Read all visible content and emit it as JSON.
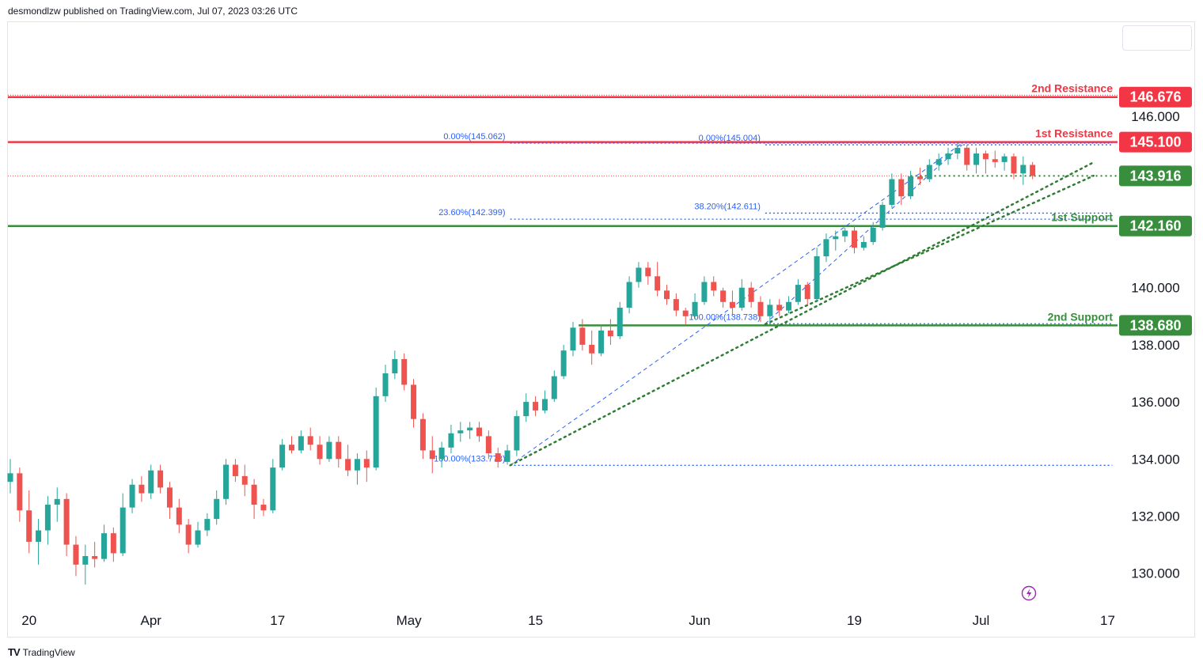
{
  "header": {
    "text": "desmondlzw published on TradingView.com, Jul 07, 2023 03:26 UTC"
  },
  "footer": {
    "logo": "TV",
    "brand": "TradingView"
  },
  "colors": {
    "resistance": "#f23645",
    "support": "#388e3c",
    "fib": "#2962ff",
    "trend": "#2e7d32",
    "up": "#26a69a",
    "down": "#ef5350"
  },
  "chart_data": {
    "type": "candlestick",
    "title": "",
    "ylim": [
      128.8,
      149.3
    ],
    "x_range": [
      0,
      118
    ],
    "y_ticks": [
      {
        "value": 146.0,
        "label": "146.000"
      },
      {
        "value": 140.0,
        "label": "140.000"
      },
      {
        "value": 138.0,
        "label": "138.000"
      },
      {
        "value": 136.0,
        "label": "136.000"
      },
      {
        "value": 134.0,
        "label": "134.000"
      },
      {
        "value": 132.0,
        "label": "132.000"
      },
      {
        "value": 130.0,
        "label": "130.000"
      }
    ],
    "x_ticks": [
      {
        "x": 2,
        "label": "20"
      },
      {
        "x": 15,
        "label": "Apr"
      },
      {
        "x": 28.5,
        "label": "17"
      },
      {
        "x": 42.5,
        "label": "May"
      },
      {
        "x": 56,
        "label": "15"
      },
      {
        "x": 73.5,
        "label": "Jun"
      },
      {
        "x": 90,
        "label": "19"
      },
      {
        "x": 103.5,
        "label": "Jul"
      },
      {
        "x": 117,
        "label": "17"
      }
    ],
    "levels": [
      {
        "name": "2nd Resistance",
        "value": 146.676,
        "label": "146.676",
        "kind": "resistance"
      },
      {
        "name": "1st Resistance",
        "value": 145.1,
        "label": "145.100",
        "kind": "resistance"
      },
      {
        "name": "1st Support",
        "value": 142.16,
        "label": "142.160",
        "kind": "support"
      },
      {
        "name": "2nd Support",
        "value": 138.68,
        "label": "138.680",
        "kind": "support"
      }
    ],
    "current_price": {
      "value": 143.916,
      "label": "143.916"
    },
    "fib_levels": [
      {
        "label": "0.00%(145.062)",
        "value": 145.062,
        "x0": 53.3,
        "x1": 117.5
      },
      {
        "label": "23.60%(142.399)",
        "value": 142.399,
        "x0": 53.3,
        "x1": 117.5
      },
      {
        "label": "100.00%(133.778)",
        "value": 133.778,
        "x0": 53.3,
        "x1": 117.5
      },
      {
        "label": "0.00%(145.004)",
        "value": 145.004,
        "x0": 80.5,
        "x1": 117.5
      },
      {
        "label": "38.20%(142.611)",
        "value": 142.611,
        "x0": 80.5,
        "x1": 117.5
      },
      {
        "label": "100.00%(138.738)",
        "value": 138.738,
        "x0": 80.5,
        "x1": 117.5
      }
    ],
    "trendlines": [
      {
        "x0": 53.3,
        "y0": 133.778,
        "x1": 115.5,
        "y1": 144.39
      },
      {
        "x0": 80.5,
        "y0": 138.72,
        "x1": 115.5,
        "y1": 143.92
      }
    ],
    "diagonals": [
      {
        "x0": 53.3,
        "y0": 133.778,
        "x1": 101.5,
        "y1": 145.062
      },
      {
        "x0": 80.5,
        "y0": 138.738,
        "x1": 101.5,
        "y1": 145.004
      }
    ],
    "candles": [
      {
        "x": 0,
        "o": 133.2,
        "h": 134.0,
        "l": 132.8,
        "c": 133.5
      },
      {
        "x": 1,
        "o": 133.5,
        "h": 133.7,
        "l": 131.8,
        "c": 132.2
      },
      {
        "x": 2,
        "o": 132.2,
        "h": 132.9,
        "l": 130.7,
        "c": 131.1
      },
      {
        "x": 3,
        "o": 131.1,
        "h": 131.9,
        "l": 130.3,
        "c": 131.5
      },
      {
        "x": 4,
        "o": 131.5,
        "h": 132.7,
        "l": 131.0,
        "c": 132.4
      },
      {
        "x": 5,
        "o": 132.4,
        "h": 133.0,
        "l": 131.8,
        "c": 132.6
      },
      {
        "x": 6,
        "o": 132.6,
        "h": 132.8,
        "l": 130.6,
        "c": 131.0
      },
      {
        "x": 7,
        "o": 131.0,
        "h": 131.3,
        "l": 129.9,
        "c": 130.3
      },
      {
        "x": 8,
        "o": 130.3,
        "h": 131.0,
        "l": 129.6,
        "c": 130.6
      },
      {
        "x": 9,
        "o": 130.6,
        "h": 131.1,
        "l": 130.2,
        "c": 130.5
      },
      {
        "x": 10,
        "o": 130.5,
        "h": 131.7,
        "l": 130.4,
        "c": 131.4
      },
      {
        "x": 11,
        "o": 131.4,
        "h": 131.6,
        "l": 130.4,
        "c": 130.7
      },
      {
        "x": 12,
        "o": 130.7,
        "h": 132.8,
        "l": 130.6,
        "c": 132.3
      },
      {
        "x": 13,
        "o": 132.3,
        "h": 133.3,
        "l": 132.1,
        "c": 133.1
      },
      {
        "x": 14,
        "o": 133.1,
        "h": 133.4,
        "l": 132.5,
        "c": 132.8
      },
      {
        "x": 15,
        "o": 132.8,
        "h": 133.8,
        "l": 132.6,
        "c": 133.6
      },
      {
        "x": 16,
        "o": 133.6,
        "h": 133.8,
        "l": 132.8,
        "c": 133.0
      },
      {
        "x": 17,
        "o": 133.0,
        "h": 133.2,
        "l": 131.9,
        "c": 132.3
      },
      {
        "x": 18,
        "o": 132.3,
        "h": 132.6,
        "l": 131.4,
        "c": 131.7
      },
      {
        "x": 19,
        "o": 131.7,
        "h": 131.9,
        "l": 130.7,
        "c": 131.0
      },
      {
        "x": 20,
        "o": 131.0,
        "h": 131.8,
        "l": 130.9,
        "c": 131.5
      },
      {
        "x": 21,
        "o": 131.5,
        "h": 132.1,
        "l": 131.3,
        "c": 131.9
      },
      {
        "x": 22,
        "o": 131.9,
        "h": 132.9,
        "l": 131.7,
        "c": 132.6
      },
      {
        "x": 23,
        "o": 132.6,
        "h": 134.0,
        "l": 132.4,
        "c": 133.8
      },
      {
        "x": 24,
        "o": 133.8,
        "h": 134.0,
        "l": 133.2,
        "c": 133.4
      },
      {
        "x": 25,
        "o": 133.4,
        "h": 133.8,
        "l": 132.7,
        "c": 133.1
      },
      {
        "x": 26,
        "o": 133.1,
        "h": 133.3,
        "l": 131.9,
        "c": 132.4
      },
      {
        "x": 27,
        "o": 132.4,
        "h": 132.6,
        "l": 132.0,
        "c": 132.2
      },
      {
        "x": 28,
        "o": 132.2,
        "h": 134.0,
        "l": 132.1,
        "c": 133.7
      },
      {
        "x": 29,
        "o": 133.7,
        "h": 134.7,
        "l": 133.6,
        "c": 134.5
      },
      {
        "x": 30,
        "o": 134.5,
        "h": 134.8,
        "l": 134.2,
        "c": 134.3
      },
      {
        "x": 31,
        "o": 134.3,
        "h": 135.0,
        "l": 134.2,
        "c": 134.8
      },
      {
        "x": 32,
        "o": 134.8,
        "h": 135.1,
        "l": 134.3,
        "c": 134.5
      },
      {
        "x": 33,
        "o": 134.5,
        "h": 134.8,
        "l": 133.8,
        "c": 134.0
      },
      {
        "x": 34,
        "o": 134.0,
        "h": 134.8,
        "l": 133.9,
        "c": 134.6
      },
      {
        "x": 35,
        "o": 134.6,
        "h": 134.8,
        "l": 133.7,
        "c": 134.0
      },
      {
        "x": 36,
        "o": 134.0,
        "h": 134.5,
        "l": 133.4,
        "c": 133.6
      },
      {
        "x": 37,
        "o": 133.6,
        "h": 134.2,
        "l": 133.1,
        "c": 134.0
      },
      {
        "x": 38,
        "o": 134.0,
        "h": 134.3,
        "l": 133.2,
        "c": 133.7
      },
      {
        "x": 39,
        "o": 133.7,
        "h": 136.5,
        "l": 133.6,
        "c": 136.2
      },
      {
        "x": 40,
        "o": 136.2,
        "h": 137.3,
        "l": 136.0,
        "c": 137.0
      },
      {
        "x": 41,
        "o": 137.0,
        "h": 137.8,
        "l": 136.8,
        "c": 137.5
      },
      {
        "x": 42,
        "o": 137.5,
        "h": 137.7,
        "l": 136.4,
        "c": 136.6
      },
      {
        "x": 43,
        "o": 136.6,
        "h": 136.8,
        "l": 135.1,
        "c": 135.4
      },
      {
        "x": 44,
        "o": 135.4,
        "h": 135.6,
        "l": 134.0,
        "c": 134.3
      },
      {
        "x": 45,
        "o": 134.3,
        "h": 134.8,
        "l": 133.5,
        "c": 134.0
      },
      {
        "x": 46,
        "o": 134.0,
        "h": 134.6,
        "l": 133.7,
        "c": 134.4
      },
      {
        "x": 47,
        "o": 134.4,
        "h": 135.2,
        "l": 134.2,
        "c": 134.9
      },
      {
        "x": 48,
        "o": 134.9,
        "h": 135.3,
        "l": 134.6,
        "c": 135.0
      },
      {
        "x": 49,
        "o": 135.0,
        "h": 135.3,
        "l": 134.7,
        "c": 135.1
      },
      {
        "x": 50,
        "o": 135.1,
        "h": 135.3,
        "l": 134.6,
        "c": 134.8
      },
      {
        "x": 51,
        "o": 134.8,
        "h": 135.0,
        "l": 134.0,
        "c": 134.2
      },
      {
        "x": 52,
        "o": 134.2,
        "h": 134.4,
        "l": 133.7,
        "c": 133.9
      },
      {
        "x": 53,
        "o": 133.9,
        "h": 134.5,
        "l": 133.8,
        "c": 134.3
      },
      {
        "x": 54,
        "o": 134.3,
        "h": 135.7,
        "l": 134.1,
        "c": 135.5
      },
      {
        "x": 55,
        "o": 135.5,
        "h": 136.3,
        "l": 135.3,
        "c": 136.0
      },
      {
        "x": 56,
        "o": 136.0,
        "h": 136.2,
        "l": 135.5,
        "c": 135.7
      },
      {
        "x": 57,
        "o": 135.7,
        "h": 136.4,
        "l": 135.6,
        "c": 136.1
      },
      {
        "x": 58,
        "o": 136.1,
        "h": 137.1,
        "l": 136.0,
        "c": 136.9
      },
      {
        "x": 59,
        "o": 136.9,
        "h": 138.0,
        "l": 136.8,
        "c": 137.8
      },
      {
        "x": 60,
        "o": 137.8,
        "h": 138.8,
        "l": 137.6,
        "c": 138.6
      },
      {
        "x": 61,
        "o": 138.6,
        "h": 138.9,
        "l": 137.8,
        "c": 138.0
      },
      {
        "x": 62,
        "o": 138.0,
        "h": 138.5,
        "l": 137.3,
        "c": 137.7
      },
      {
        "x": 63,
        "o": 137.7,
        "h": 138.7,
        "l": 137.6,
        "c": 138.5
      },
      {
        "x": 64,
        "o": 138.5,
        "h": 138.9,
        "l": 138.0,
        "c": 138.3
      },
      {
        "x": 65,
        "o": 138.3,
        "h": 139.5,
        "l": 138.2,
        "c": 139.3
      },
      {
        "x": 66,
        "o": 139.3,
        "h": 140.4,
        "l": 139.1,
        "c": 140.2
      },
      {
        "x": 67,
        "o": 140.2,
        "h": 140.9,
        "l": 140.0,
        "c": 140.7
      },
      {
        "x": 68,
        "o": 140.7,
        "h": 140.9,
        "l": 140.1,
        "c": 140.4
      },
      {
        "x": 69,
        "o": 140.4,
        "h": 140.9,
        "l": 139.7,
        "c": 139.9
      },
      {
        "x": 70,
        "o": 139.9,
        "h": 140.1,
        "l": 139.4,
        "c": 139.6
      },
      {
        "x": 71,
        "o": 139.6,
        "h": 139.8,
        "l": 139.0,
        "c": 139.2
      },
      {
        "x": 72,
        "o": 139.2,
        "h": 139.3,
        "l": 138.7,
        "c": 139.0
      },
      {
        "x": 73,
        "o": 139.0,
        "h": 139.8,
        "l": 138.9,
        "c": 139.5
      },
      {
        "x": 74,
        "o": 139.5,
        "h": 140.4,
        "l": 139.4,
        "c": 140.2
      },
      {
        "x": 75,
        "o": 140.2,
        "h": 140.4,
        "l": 139.7,
        "c": 139.9
      },
      {
        "x": 76,
        "o": 139.9,
        "h": 140.0,
        "l": 139.3,
        "c": 139.5
      },
      {
        "x": 77,
        "o": 139.5,
        "h": 139.9,
        "l": 139.0,
        "c": 139.3
      },
      {
        "x": 78,
        "o": 139.3,
        "h": 140.3,
        "l": 139.2,
        "c": 140.0
      },
      {
        "x": 79,
        "o": 140.0,
        "h": 140.2,
        "l": 139.3,
        "c": 139.5
      },
      {
        "x": 80,
        "o": 139.5,
        "h": 139.7,
        "l": 138.8,
        "c": 139.0
      },
      {
        "x": 81,
        "o": 139.0,
        "h": 139.6,
        "l": 138.8,
        "c": 139.4
      },
      {
        "x": 82,
        "o": 139.4,
        "h": 139.6,
        "l": 139.0,
        "c": 139.2
      },
      {
        "x": 83,
        "o": 139.2,
        "h": 139.7,
        "l": 139.1,
        "c": 139.5
      },
      {
        "x": 84,
        "o": 139.5,
        "h": 140.3,
        "l": 139.4,
        "c": 140.1
      },
      {
        "x": 85,
        "o": 140.1,
        "h": 140.2,
        "l": 139.4,
        "c": 139.6
      },
      {
        "x": 86,
        "o": 139.6,
        "h": 141.4,
        "l": 139.5,
        "c": 141.1
      },
      {
        "x": 87,
        "o": 141.1,
        "h": 141.9,
        "l": 140.9,
        "c": 141.7
      },
      {
        "x": 88,
        "o": 141.7,
        "h": 142.0,
        "l": 141.3,
        "c": 141.8
      },
      {
        "x": 89,
        "o": 141.8,
        "h": 142.1,
        "l": 141.6,
        "c": 142.0
      },
      {
        "x": 90,
        "o": 142.0,
        "h": 142.2,
        "l": 141.2,
        "c": 141.4
      },
      {
        "x": 91,
        "o": 141.4,
        "h": 141.8,
        "l": 141.3,
        "c": 141.6
      },
      {
        "x": 92,
        "o": 141.6,
        "h": 142.3,
        "l": 141.5,
        "c": 142.1
      },
      {
        "x": 93,
        "o": 142.1,
        "h": 143.0,
        "l": 142.0,
        "c": 142.9
      },
      {
        "x": 94,
        "o": 142.9,
        "h": 144.0,
        "l": 142.8,
        "c": 143.8
      },
      {
        "x": 95,
        "o": 143.8,
        "h": 144.0,
        "l": 142.9,
        "c": 143.2
      },
      {
        "x": 96,
        "o": 143.2,
        "h": 144.1,
        "l": 143.1,
        "c": 143.9
      },
      {
        "x": 97,
        "o": 143.9,
        "h": 144.2,
        "l": 143.6,
        "c": 143.8
      },
      {
        "x": 98,
        "o": 143.8,
        "h": 144.5,
        "l": 143.7,
        "c": 144.3
      },
      {
        "x": 99,
        "o": 144.3,
        "h": 144.7,
        "l": 144.1,
        "c": 144.5
      },
      {
        "x": 100,
        "o": 144.5,
        "h": 144.9,
        "l": 144.3,
        "c": 144.7
      },
      {
        "x": 101,
        "o": 144.7,
        "h": 145.07,
        "l": 144.5,
        "c": 144.9
      },
      {
        "x": 102,
        "o": 144.9,
        "h": 145.0,
        "l": 144.1,
        "c": 144.3
      },
      {
        "x": 103,
        "o": 144.3,
        "h": 144.9,
        "l": 144.0,
        "c": 144.7
      },
      {
        "x": 104,
        "o": 144.7,
        "h": 144.8,
        "l": 144.0,
        "c": 144.5
      },
      {
        "x": 105,
        "o": 144.5,
        "h": 144.8,
        "l": 144.2,
        "c": 144.4
      },
      {
        "x": 106,
        "o": 144.4,
        "h": 144.7,
        "l": 144.1,
        "c": 144.6
      },
      {
        "x": 107,
        "o": 144.6,
        "h": 144.7,
        "l": 143.8,
        "c": 144.0
      },
      {
        "x": 108,
        "o": 144.0,
        "h": 144.6,
        "l": 143.6,
        "c": 144.3
      },
      {
        "x": 109,
        "o": 144.3,
        "h": 144.4,
        "l": 143.8,
        "c": 143.916
      }
    ]
  }
}
